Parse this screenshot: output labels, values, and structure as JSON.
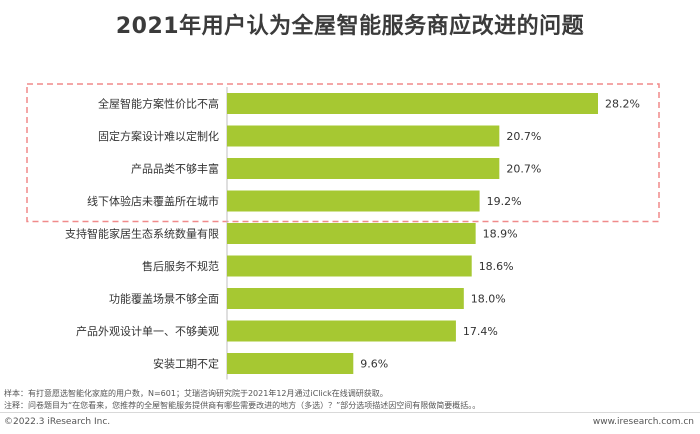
{
  "title": "2021年用户认为全屋智能服务商应改进的问题",
  "chart_data": {
    "type": "bar",
    "orientation": "horizontal",
    "categories": [
      "全屋智能方案性价比不高",
      "固定方案设计难以定制化",
      "产品品类不够丰富",
      "线下体验店未覆盖所在城市",
      "支持智能家居生态系统数量有限",
      "售后服务不规范",
      "功能覆盖场景不够全面",
      "产品外观设计单一、不够美观",
      "安装工期不定"
    ],
    "values": [
      28.2,
      20.7,
      20.7,
      19.2,
      18.9,
      18.6,
      18.0,
      17.4,
      9.6
    ],
    "value_labels": [
      "28.2%",
      "20.7%",
      "20.7%",
      "19.2%",
      "18.9%",
      "18.6%",
      "18.0%",
      "17.4%",
      "9.6%"
    ],
    "unit": "%",
    "xlim": [
      0,
      28.2
    ],
    "highlight_group": [
      0,
      1,
      2,
      3
    ],
    "bar_color": "#a6c832",
    "highlight_box_color": "#f08a8a",
    "grid": false
  },
  "notes": {
    "sample": "样本：有打意愿选智能化家庭的用户数，N=601；艾瑞咨询研究院于2021年12月通过iClick在线调研获取。",
    "remark": "注释：问卷题目为“在您看来，您推荐的全屋智能服务提供商有哪些需要改进的地方（多选）？”部分选项描述因空间有限做简要概括。。"
  },
  "footer": {
    "copyright": "©2022.3 iResearch Inc.",
    "website": "www.iresearch.com.cn"
  }
}
